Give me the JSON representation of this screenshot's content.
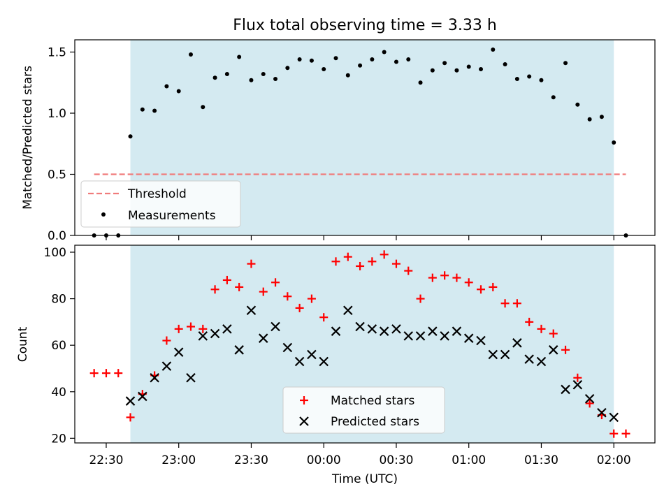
{
  "chart_data": [
    {
      "type": "scatter",
      "title": "Flux total observing time = 3.33 h",
      "xlabel": "",
      "ylabel": "Matched/Predicted stars",
      "ylim": [
        0,
        1.6
      ],
      "yticks": [
        "0.0",
        "0.5",
        "1.0",
        "1.5"
      ],
      "xlim": [
        "22:17",
        "02:17"
      ],
      "shaded_interval": [
        "22:40",
        "02:00"
      ],
      "shade_color": "#d4eaf1",
      "threshold": {
        "name": "Threshold",
        "value": 0.5,
        "x_range": [
          "22:25",
          "02:05"
        ],
        "color": "#f07b7b"
      },
      "legend_position": "lower-left",
      "series": [
        {
          "name": "Measurements",
          "color": "#000000",
          "x": [
            "22:25",
            "22:30",
            "22:35",
            "22:40",
            "22:45",
            "22:50",
            "22:55",
            "23:00",
            "23:05",
            "23:10",
            "23:15",
            "23:20",
            "23:25",
            "23:30",
            "23:35",
            "23:40",
            "23:45",
            "23:50",
            "23:55",
            "00:00",
            "00:05",
            "00:10",
            "00:15",
            "00:20",
            "00:25",
            "00:30",
            "00:35",
            "00:40",
            "00:45",
            "00:50",
            "00:55",
            "01:00",
            "01:05",
            "01:10",
            "01:15",
            "01:20",
            "01:25",
            "01:30",
            "01:35",
            "01:40",
            "01:45",
            "01:50",
            "01:55",
            "02:00",
            "02:05"
          ],
          "y": [
            0.0,
            0.0,
            0.0,
            0.81,
            1.03,
            1.02,
            1.22,
            1.18,
            1.48,
            1.05,
            1.29,
            1.32,
            1.46,
            1.27,
            1.32,
            1.28,
            1.37,
            1.44,
            1.43,
            1.36,
            1.45,
            1.31,
            1.39,
            1.44,
            1.5,
            1.42,
            1.44,
            1.25,
            1.35,
            1.41,
            1.35,
            1.38,
            1.36,
            1.52,
            1.4,
            1.28,
            1.3,
            1.27,
            1.13,
            1.41,
            1.07,
            0.95,
            0.97,
            0.76,
            0.0
          ]
        }
      ]
    },
    {
      "type": "scatter",
      "title": "",
      "xlabel": "Time (UTC)",
      "ylabel": "Count",
      "ylim": [
        18,
        103
      ],
      "yticks": [
        "20",
        "40",
        "60",
        "80",
        "100"
      ],
      "xticks": [
        "22:30",
        "23:00",
        "23:30",
        "00:00",
        "00:30",
        "01:00",
        "01:30",
        "02:00"
      ],
      "xlim": [
        "22:17",
        "02:17"
      ],
      "shaded_interval": [
        "22:40",
        "02:00"
      ],
      "shade_color": "#d4eaf1",
      "legend_position": "lower-center",
      "series": [
        {
          "name": "Matched stars",
          "marker": "+",
          "color": "#ff0000",
          "x": [
            "22:25",
            "22:30",
            "22:35",
            "22:40",
            "22:45",
            "22:50",
            "22:55",
            "23:00",
            "23:05",
            "23:10",
            "23:15",
            "23:20",
            "23:25",
            "23:30",
            "23:35",
            "23:40",
            "23:45",
            "23:50",
            "23:55",
            "00:00",
            "00:05",
            "00:10",
            "00:15",
            "00:20",
            "00:25",
            "00:30",
            "00:35",
            "00:40",
            "00:45",
            "00:50",
            "00:55",
            "01:00",
            "01:05",
            "01:10",
            "01:15",
            "01:20",
            "01:25",
            "01:30",
            "01:35",
            "01:40",
            "01:45",
            "01:50",
            "01:55",
            "02:00",
            "02:05"
          ],
          "y": [
            48,
            48,
            48,
            29,
            39,
            47,
            62,
            67,
            68,
            67,
            84,
            88,
            85,
            95,
            83,
            87,
            81,
            76,
            80,
            72,
            96,
            98,
            94,
            96,
            99,
            95,
            92,
            80,
            89,
            90,
            89,
            87,
            84,
            85,
            78,
            78,
            70,
            67,
            65,
            58,
            46,
            35,
            30,
            22,
            22
          ]
        },
        {
          "name": "Predicted stars",
          "marker": "x",
          "color": "#000000",
          "x": [
            "22:40",
            "22:45",
            "22:50",
            "22:55",
            "23:00",
            "23:05",
            "23:10",
            "23:15",
            "23:20",
            "23:25",
            "23:30",
            "23:35",
            "23:40",
            "23:45",
            "23:50",
            "23:55",
            "00:00",
            "00:05",
            "00:10",
            "00:15",
            "00:20",
            "00:25",
            "00:30",
            "00:35",
            "00:40",
            "00:45",
            "00:50",
            "00:55",
            "01:00",
            "01:05",
            "01:10",
            "01:15",
            "01:20",
            "01:25",
            "01:30",
            "01:35",
            "01:40",
            "01:45",
            "01:50",
            "01:55",
            "02:00"
          ],
          "y": [
            36,
            38,
            46,
            51,
            57,
            46,
            64,
            65,
            67,
            58,
            75,
            63,
            68,
            59,
            53,
            56,
            53,
            66,
            75,
            68,
            67,
            66,
            67,
            64,
            64,
            66,
            64,
            66,
            63,
            62,
            56,
            56,
            61,
            54,
            53,
            58,
            41,
            43,
            37,
            31,
            29
          ]
        }
      ]
    }
  ]
}
